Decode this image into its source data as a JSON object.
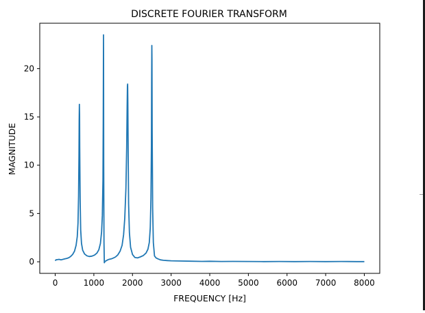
{
  "window": {
    "frame_color": "#1a1a1a"
  },
  "chart_data": {
    "type": "line",
    "title": "DISCRETE FOURIER TRANSFORM",
    "xlabel": "FREQUENCY [Hz]",
    "ylabel": "MAGNITUDE",
    "xlim": [
      -400,
      8400
    ],
    "ylim": [
      -1.2,
      24.7
    ],
    "xticks": [
      0,
      1000,
      2000,
      3000,
      4000,
      5000,
      6000,
      7000,
      8000
    ],
    "yticks": [
      0,
      5,
      10,
      15,
      20
    ],
    "grid": false,
    "legend": "none",
    "series": [
      {
        "color": "#1f77b4",
        "peaks": [
          {
            "x": 625,
            "y": 16.3
          },
          {
            "x": 1250,
            "y": 23.5
          },
          {
            "x": 1875,
            "y": 18.4
          },
          {
            "x": 2500,
            "y": 22.4
          }
        ],
        "x": [
          0,
          20,
          60,
          100,
          150,
          200,
          250,
          300,
          350,
          400,
          450,
          500,
          540,
          570,
          590,
          605,
          615,
          620,
          625,
          630,
          635,
          645,
          660,
          680,
          710,
          760,
          820,
          880,
          950,
          1020,
          1080,
          1130,
          1170,
          1200,
          1220,
          1235,
          1243,
          1248,
          1250,
          1252,
          1256,
          1262,
          1272,
          1290,
          1320,
          1360,
          1400,
          1450,
          1500,
          1560,
          1620,
          1680,
          1730,
          1770,
          1800,
          1830,
          1850,
          1862,
          1870,
          1875,
          1880,
          1888,
          1900,
          1920,
          1950,
          2000,
          2060,
          2130,
          2200,
          2280,
          2350,
          2400,
          2435,
          2460,
          2478,
          2490,
          2496,
          2500,
          2504,
          2510,
          2522,
          2540,
          2570,
          2610,
          2660,
          2720,
          2800,
          2900,
          3000,
          3200,
          3500,
          3800,
          4000,
          4300,
          4600,
          5000,
          5400,
          5800,
          6200,
          6600,
          7000,
          7400,
          7800,
          8000
        ],
        "y": [
          0.1,
          0.2,
          0.22,
          0.25,
          0.2,
          0.25,
          0.3,
          0.35,
          0.42,
          0.55,
          0.75,
          1.1,
          1.7,
          2.6,
          4.0,
          6.8,
          11.0,
          14.6,
          16.3,
          15.2,
          11.8,
          6.5,
          3.3,
          1.9,
          1.2,
          0.8,
          0.62,
          0.55,
          0.58,
          0.7,
          0.9,
          1.25,
          1.9,
          3.1,
          4.8,
          8.5,
          14.5,
          21.5,
          23.5,
          20.5,
          10.0,
          2.0,
          -0.1,
          0.05,
          0.1,
          0.2,
          0.26,
          0.3,
          0.38,
          0.5,
          0.72,
          1.1,
          1.7,
          2.8,
          4.5,
          7.6,
          11.8,
          16.2,
          18.2,
          18.4,
          16.5,
          11.2,
          6.0,
          3.0,
          1.5,
          0.75,
          0.45,
          0.4,
          0.5,
          0.65,
          0.9,
          1.3,
          2.0,
          3.5,
          6.5,
          12.0,
          18.5,
          22.4,
          21.0,
          13.5,
          5.5,
          2.0,
          0.6,
          0.4,
          0.3,
          0.2,
          0.15,
          0.12,
          0.1,
          0.08,
          0.06,
          0.04,
          0.05,
          0.03,
          0.04,
          0.03,
          0.02,
          0.03,
          0.02,
          0.03,
          0.02,
          0.03,
          0.02,
          0.02
        ]
      }
    ]
  }
}
